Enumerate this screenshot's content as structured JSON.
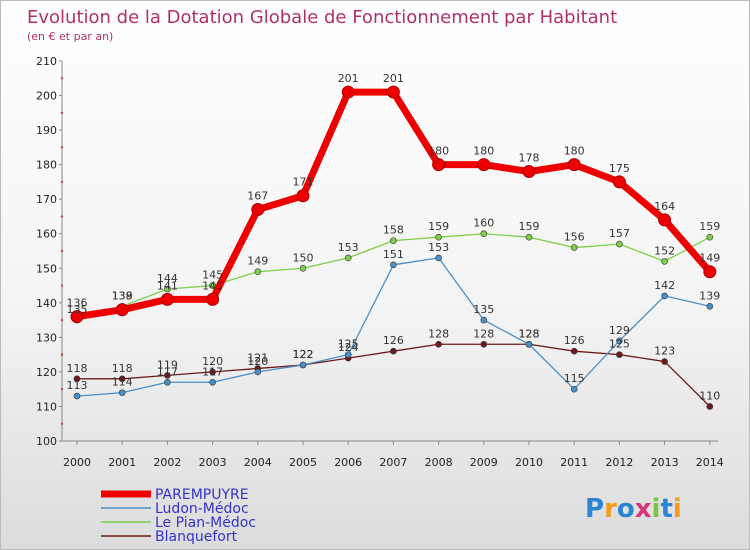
{
  "chart_data": {
    "type": "line",
    "title": "Evolution de la Dotation Globale de Fonctionnement par Habitant",
    "subtitle": "(en € et par an)",
    "xlabel": "",
    "ylabel": "",
    "x": [
      "2000",
      "2001",
      "2002",
      "2003",
      "2004",
      "2005",
      "2006",
      "2007",
      "2008",
      "2009",
      "2010",
      "2011",
      "2012",
      "2013",
      "2014"
    ],
    "ylim": [
      100,
      210
    ],
    "yticks": [
      "100",
      "110",
      "120",
      "130",
      "140",
      "150",
      "160",
      "170",
      "180",
      "190",
      "200",
      "210"
    ],
    "grid": false,
    "legend_position": "bottom-left",
    "series": [
      {
        "name": "Blanquefort",
        "color": "#6e1a1a",
        "values": [
          118,
          118,
          119,
          120,
          121,
          122,
          124,
          126,
          128,
          128,
          128,
          126,
          125,
          123,
          110
        ]
      },
      {
        "name": "Ludon-Médoc",
        "color": "#4a90c8",
        "values": [
          113,
          114,
          117,
          117,
          120,
          122,
          125,
          151,
          153,
          135,
          128,
          115,
          129,
          142,
          139
        ]
      },
      {
        "name": "Le Pian-Médoc",
        "color": "#7cd04a",
        "values": [
          135,
          139,
          144,
          145,
          149,
          150,
          153,
          158,
          159,
          160,
          159,
          156,
          157,
          152,
          159
        ]
      },
      {
        "name": "PAREMPUYRE",
        "color": "#ee0000",
        "values": [
          136,
          138,
          141,
          141,
          167,
          171,
          201,
          201,
          180,
          180,
          178,
          180,
          175,
          164,
          149
        ]
      }
    ]
  },
  "legend": {
    "items": [
      "PAREMPUYRE",
      "Ludon-Médoc",
      "Le Pian-Médoc",
      "Blanquefort"
    ],
    "colors": [
      "#ee0000",
      "#4a90c8",
      "#7cd04a",
      "#6e1a1a"
    ]
  },
  "logo": {
    "text": "Proxiti",
    "colors": [
      "#2a86d2",
      "#f29b1c",
      "#2a86d2",
      "#d23a7a",
      "#7cc242",
      "#2a86d2",
      "#f29b1c"
    ]
  }
}
